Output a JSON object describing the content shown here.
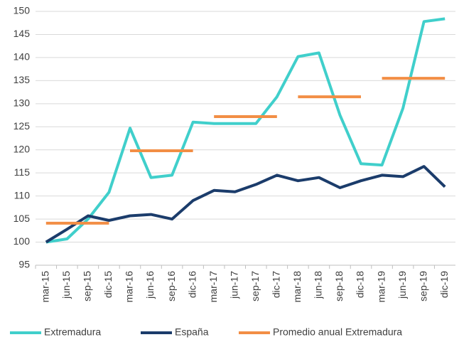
{
  "chart_data": {
    "type": "line",
    "categories": [
      "mar-15",
      "jun-15",
      "sep-15",
      "dic-15",
      "mar-16",
      "jun-16",
      "sep-16",
      "dic-16",
      "mar-17",
      "jun-17",
      "sep-17",
      "dic-17",
      "mar-18",
      "jun-18",
      "sep-18",
      "dic-18",
      "mar-19",
      "jun-19",
      "sep-19",
      "dic-19"
    ],
    "series": [
      {
        "name": "Extremadura",
        "color": "#40cfcb",
        "values": [
          100,
          100.7,
          105,
          110.8,
          124.7,
          114,
          114.5,
          126,
          125.7,
          125.7,
          125.7,
          131.5,
          140.2,
          141,
          127.5,
          117,
          116.7,
          129,
          147.8,
          148.4
        ]
      },
      {
        "name": "España",
        "color": "#1b3c6b",
        "values": [
          100,
          102.8,
          105.7,
          104.7,
          105.7,
          106,
          105,
          109,
          111.2,
          110.9,
          112.5,
          114.5,
          113.3,
          114,
          111.8,
          113.3,
          114.5,
          114.2,
          116.4,
          112
        ]
      },
      {
        "name": "Promedio anual Extremadura",
        "color": "#f28e45",
        "values": [
          104.1,
          104.1,
          104.1,
          104.1,
          119.8,
          119.8,
          119.8,
          119.8,
          127.2,
          127.2,
          127.2,
          127.2,
          131.5,
          131.5,
          131.5,
          131.5,
          135.5,
          135.5,
          135.5,
          135.5
        ]
      }
    ],
    "ylim": [
      95,
      150
    ],
    "yticks": [
      95,
      100,
      105,
      110,
      115,
      120,
      125,
      130,
      135,
      140,
      145,
      150
    ],
    "grid": true,
    "legend": "bottom"
  }
}
